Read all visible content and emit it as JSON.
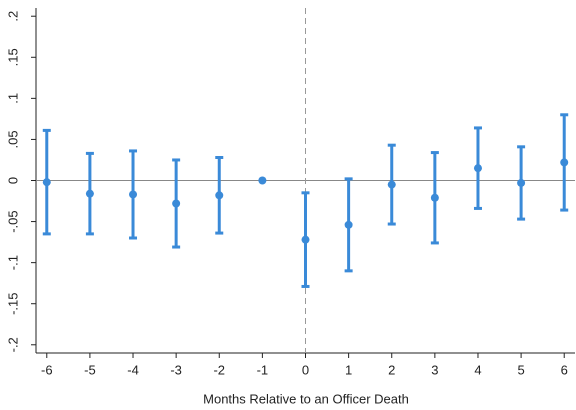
{
  "chart_data": {
    "type": "errorbar",
    "xlabel": "Months Relative to an Officer Death",
    "x": [
      -6,
      -5,
      -4,
      -3,
      -2,
      -1,
      0,
      1,
      2,
      3,
      4,
      5,
      6
    ],
    "series": [
      {
        "color": "#3a8ad8",
        "values": [
          -0.002,
          -0.016,
          -0.017,
          -0.028,
          -0.018,
          0,
          -0.072,
          -0.054,
          -0.005,
          -0.021,
          0.015,
          -0.003,
          0.022
        ],
        "errors": [
          0.063,
          0.049,
          0.053,
          0.053,
          0.046,
          0,
          0.057,
          0.056,
          0.048,
          0.055,
          0.049,
          0.044,
          0.058
        ]
      }
    ],
    "xlim": [
      -6.25,
      6.25
    ],
    "ylim": [
      -0.21,
      0.21
    ],
    "xticks": [
      -6,
      -5,
      -4,
      -3,
      -2,
      -1,
      0,
      1,
      2,
      3,
      4,
      5,
      6
    ],
    "yticks": [
      {
        "value": -0.2,
        "label": "-.2"
      },
      {
        "value": -0.15,
        "label": "-.15"
      },
      {
        "value": -0.1,
        "label": "-.1"
      },
      {
        "value": -0.05,
        "label": "-.05"
      },
      0,
      {
        "value": 0.05,
        "label": ".05"
      },
      {
        "value": 0.1,
        "label": ".1"
      },
      {
        "value": 0.15,
        "label": ".15"
      },
      {
        "value": 0.2,
        "label": ".2"
      }
    ],
    "hline": 0,
    "vline": 0
  }
}
